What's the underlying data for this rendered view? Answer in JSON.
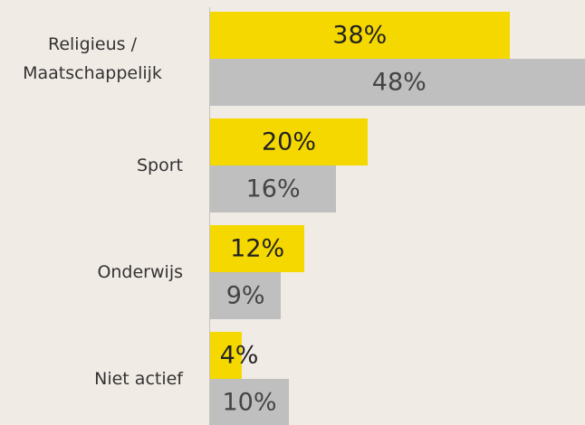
{
  "chart_data": {
    "type": "bar",
    "orientation": "horizontal",
    "categories": [
      "Religieus / Maatschappelijk",
      "Sport",
      "Onderwijs",
      "Niet actief"
    ],
    "series": [
      {
        "color": "#f5d800",
        "values": [
          38,
          20,
          12,
          4
        ],
        "value_labels": [
          "38%",
          "20%",
          "12%",
          "4%"
        ]
      },
      {
        "color": "#bfbfbf",
        "values": [
          48,
          16,
          9,
          10
        ],
        "value_labels": [
          "48%",
          "16%",
          "9%",
          "10%"
        ]
      }
    ]
  }
}
